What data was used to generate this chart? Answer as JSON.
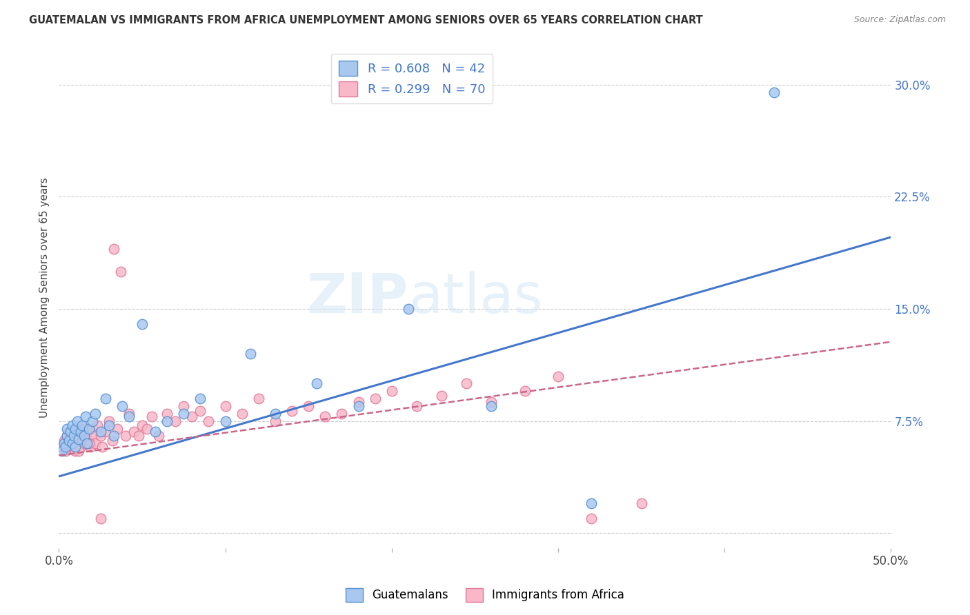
{
  "title": "GUATEMALAN VS IMMIGRANTS FROM AFRICA UNEMPLOYMENT AMONG SENIORS OVER 65 YEARS CORRELATION CHART",
  "source": "Source: ZipAtlas.com",
  "ylabel": "Unemployment Among Seniors over 65 years",
  "x_min": 0.0,
  "x_max": 0.5,
  "y_min": -0.01,
  "y_max": 0.325,
  "y_ticks": [
    0.0,
    0.075,
    0.15,
    0.225,
    0.3
  ],
  "y_tick_labels_right": [
    "",
    "7.5%",
    "15.0%",
    "22.5%",
    "30.0%"
  ],
  "x_ticks": [
    0.0,
    0.1,
    0.2,
    0.3,
    0.4,
    0.5
  ],
  "x_tick_labels": [
    "0.0%",
    "",
    "",
    "",
    "",
    "50.0%"
  ],
  "guatemalan_R": 0.608,
  "guatemalan_N": 42,
  "africa_R": 0.299,
  "africa_N": 70,
  "color_blue_fill": "#A8C8F0",
  "color_blue_edge": "#5590D0",
  "color_pink_fill": "#F8B8C8",
  "color_pink_edge": "#E07898",
  "color_blue_line": "#4477CC",
  "color_pink_line": "#CC6688",
  "blue_line_x": [
    0.0,
    0.5
  ],
  "blue_line_y": [
    0.038,
    0.198
  ],
  "pink_line_x": [
    0.0,
    0.5
  ],
  "pink_line_y": [
    0.052,
    0.128
  ],
  "guat_x": [
    0.002,
    0.003,
    0.004,
    0.005,
    0.005,
    0.006,
    0.007,
    0.008,
    0.008,
    0.009,
    0.01,
    0.01,
    0.011,
    0.012,
    0.013,
    0.014,
    0.015,
    0.016,
    0.017,
    0.018,
    0.02,
    0.022,
    0.025,
    0.028,
    0.03,
    0.033,
    0.038,
    0.042,
    0.05,
    0.058,
    0.065,
    0.075,
    0.085,
    0.1,
    0.115,
    0.13,
    0.155,
    0.18,
    0.21,
    0.26,
    0.32,
    0.43
  ],
  "guat_y": [
    0.055,
    0.06,
    0.058,
    0.065,
    0.07,
    0.062,
    0.068,
    0.06,
    0.072,
    0.065,
    0.07,
    0.058,
    0.075,
    0.063,
    0.068,
    0.072,
    0.065,
    0.078,
    0.06,
    0.07,
    0.075,
    0.08,
    0.068,
    0.09,
    0.072,
    0.065,
    0.085,
    0.078,
    0.14,
    0.068,
    0.075,
    0.08,
    0.09,
    0.075,
    0.12,
    0.08,
    0.1,
    0.085,
    0.15,
    0.085,
    0.02,
    0.295
  ],
  "africa_x": [
    0.002,
    0.003,
    0.004,
    0.005,
    0.005,
    0.006,
    0.007,
    0.008,
    0.009,
    0.01,
    0.01,
    0.011,
    0.012,
    0.013,
    0.014,
    0.015,
    0.015,
    0.016,
    0.017,
    0.018,
    0.019,
    0.02,
    0.021,
    0.022,
    0.023,
    0.025,
    0.026,
    0.028,
    0.03,
    0.032,
    0.033,
    0.035,
    0.037,
    0.04,
    0.042,
    0.045,
    0.048,
    0.05,
    0.053,
    0.056,
    0.06,
    0.065,
    0.07,
    0.075,
    0.08,
    0.085,
    0.09,
    0.1,
    0.11,
    0.12,
    0.13,
    0.14,
    0.15,
    0.16,
    0.17,
    0.18,
    0.19,
    0.2,
    0.215,
    0.23,
    0.245,
    0.26,
    0.28,
    0.3,
    0.32,
    0.35,
    0.008,
    0.012,
    0.018,
    0.025
  ],
  "africa_y": [
    0.058,
    0.062,
    0.055,
    0.065,
    0.06,
    0.068,
    0.058,
    0.065,
    0.06,
    0.07,
    0.055,
    0.068,
    0.062,
    0.058,
    0.065,
    0.07,
    0.06,
    0.065,
    0.068,
    0.062,
    0.058,
    0.07,
    0.065,
    0.06,
    0.072,
    0.065,
    0.058,
    0.068,
    0.075,
    0.062,
    0.19,
    0.07,
    0.175,
    0.065,
    0.08,
    0.068,
    0.065,
    0.072,
    0.07,
    0.078,
    0.065,
    0.08,
    0.075,
    0.085,
    0.078,
    0.082,
    0.075,
    0.085,
    0.08,
    0.09,
    0.075,
    0.082,
    0.085,
    0.078,
    0.08,
    0.088,
    0.09,
    0.095,
    0.085,
    0.092,
    0.1,
    0.088,
    0.095,
    0.105,
    0.01,
    0.02,
    0.068,
    0.055,
    0.06,
    0.01
  ],
  "watermark_zip": "ZIP",
  "watermark_atlas": "atlas",
  "background_color": "#FFFFFF",
  "grid_color": "#CCCCCC"
}
